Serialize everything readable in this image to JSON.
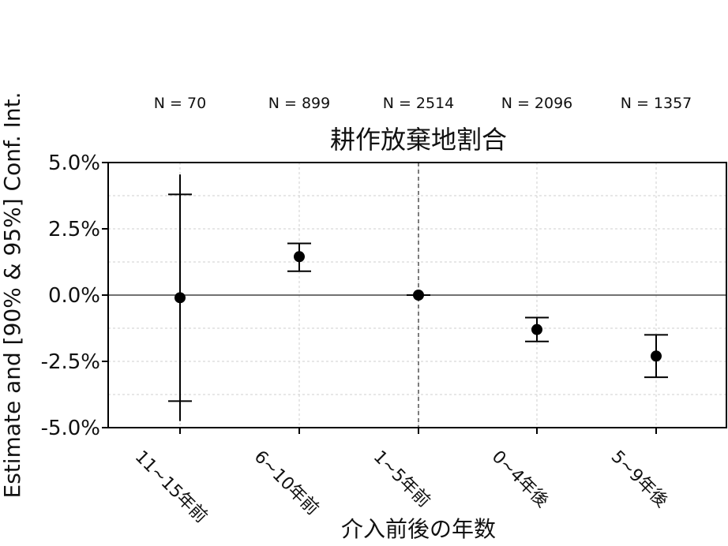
{
  "chart_data": {
    "type": "scatter",
    "title": "耕作放棄地割合",
    "xlabel": "介入前後の年数",
    "ylabel": "Estimate and [90% & 95%] Conf. Int.",
    "categories": [
      "11~15年前",
      "6~10年前",
      "1~5年前",
      "0~4年後",
      "5~9年後"
    ],
    "n_labels": [
      "N = 70",
      "N = 899",
      "N = 2514",
      "N = 2096",
      "N = 1357"
    ],
    "ylim": [
      -5.0,
      5.0
    ],
    "yticks": [
      5.0,
      2.5,
      0.0,
      -2.5,
      -5.0
    ],
    "ytick_labels": [
      "5.0%",
      "2.5%",
      "0.0%",
      "-2.5%",
      "-5.0%"
    ],
    "grid": true,
    "reference_hline": 0.0,
    "reference_vline_category": "1~5年前",
    "series": [
      {
        "estimate": [
          -0.1,
          1.45,
          0.0,
          -1.3,
          -2.3
        ],
        "ci90_low": [
          -4.0,
          0.9,
          0.0,
          -1.75,
          -3.1
        ],
        "ci90_high": [
          3.8,
          1.95,
          0.0,
          -0.85,
          -1.5
        ],
        "ci95_low": [
          -4.75,
          0.9,
          0.0,
          -1.75,
          -3.1
        ],
        "ci95_high": [
          4.55,
          1.95,
          0.0,
          -0.85,
          -1.5
        ]
      }
    ]
  }
}
